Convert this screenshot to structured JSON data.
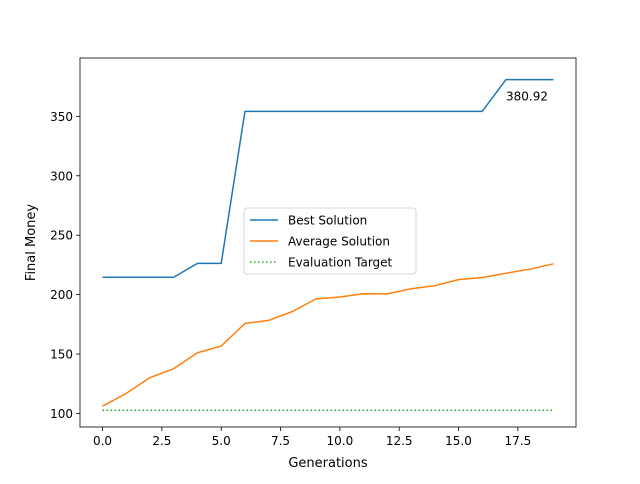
{
  "chart_data": {
    "type": "line",
    "title": "",
    "xlabel": "Generations",
    "ylabel": "Final Money",
    "xlim": [
      -0.95,
      19.95
    ],
    "ylim": [
      88.6,
      399.1
    ],
    "grid": false,
    "legend_position": "center",
    "x_ticks": [
      0.0,
      2.5,
      5.0,
      7.5,
      10.0,
      12.5,
      15.0,
      17.5
    ],
    "x_tick_labels": [
      "0.0",
      "2.5",
      "5.0",
      "7.5",
      "10.0",
      "12.5",
      "15.0",
      "17.5"
    ],
    "y_ticks": [
      100,
      150,
      200,
      250,
      300,
      350
    ],
    "y_tick_labels": [
      "100",
      "150",
      "200",
      "250",
      "300",
      "350"
    ],
    "x": [
      0,
      1,
      2,
      3,
      4,
      5,
      6,
      7,
      8,
      9,
      10,
      11,
      12,
      13,
      14,
      15,
      16,
      17,
      18,
      19
    ],
    "series": [
      {
        "name": "Best Solution",
        "color": "#1f77b4",
        "style": "solid",
        "values": [
          214.6,
          214.6,
          214.6,
          214.6,
          226.3,
          226.3,
          354.2,
          354.2,
          354.2,
          354.2,
          354.2,
          354.2,
          354.2,
          354.2,
          354.2,
          354.2,
          354.2,
          380.92,
          380.92,
          380.92
        ]
      },
      {
        "name": "Average Solution",
        "color": "#ff7f0e",
        "style": "solid",
        "values": [
          106.1,
          116.9,
          130.2,
          137.7,
          151.1,
          156.7,
          175.8,
          178.3,
          185.8,
          196.4,
          198.0,
          200.7,
          200.6,
          204.9,
          207.5,
          212.6,
          214.4,
          218.0,
          221.4,
          225.9
        ]
      },
      {
        "name": "Evaluation Target",
        "color": "#2ca02c",
        "style": "dotted",
        "values": [
          102.7,
          102.7,
          102.7,
          102.7,
          102.7,
          102.7,
          102.7,
          102.7,
          102.7,
          102.7,
          102.7,
          102.7,
          102.7,
          102.7,
          102.7,
          102.7,
          102.7,
          102.7,
          102.7,
          102.7
        ]
      }
    ],
    "annotations": [
      {
        "text": "380.92",
        "x": 17.0,
        "y": 380.92
      }
    ]
  }
}
